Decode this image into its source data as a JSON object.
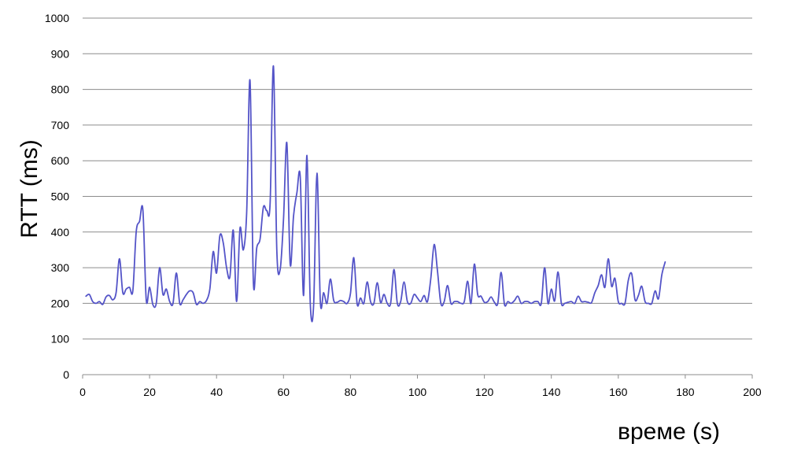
{
  "chart_data": {
    "type": "line",
    "title": "",
    "xlabel": "време (s)",
    "ylabel": "RTT (ms)",
    "xlim": [
      0,
      200
    ],
    "ylim": [
      0,
      1000
    ],
    "x_ticks": [
      0,
      20,
      40,
      60,
      80,
      100,
      120,
      140,
      160,
      180,
      200
    ],
    "y_ticks": [
      0,
      100,
      200,
      300,
      400,
      500,
      600,
      700,
      800,
      900,
      1000
    ],
    "grid": "horizontal",
    "legend": "none",
    "line_color": "#5454c8",
    "series": [
      {
        "x": [
          1,
          2,
          3,
          4,
          5,
          6,
          7,
          8,
          9,
          10,
          11,
          12,
          13,
          14,
          15,
          16,
          17,
          18,
          19,
          20,
          21,
          22,
          23,
          24,
          25,
          26,
          27,
          28,
          29,
          30,
          31,
          32,
          33,
          34,
          35,
          36,
          37,
          38,
          39,
          40,
          41,
          42,
          43,
          44,
          45,
          46,
          47,
          48,
          49,
          50,
          51,
          52,
          53,
          54,
          55,
          56,
          57,
          58,
          59,
          60,
          61,
          62,
          63,
          64,
          65,
          66,
          67,
          68,
          69,
          70,
          71,
          72,
          73,
          74,
          75,
          76,
          77,
          78,
          79,
          80,
          81,
          82,
          83,
          84,
          85,
          86,
          87,
          88,
          89,
          90,
          91,
          92,
          93,
          94,
          95,
          96,
          97,
          98,
          99,
          100,
          101,
          102,
          103,
          104,
          105,
          106,
          107,
          108,
          109,
          110,
          111,
          112,
          113,
          114,
          115,
          116,
          117,
          118,
          119,
          120,
          121,
          122,
          123,
          124,
          125,
          126,
          127,
          128,
          129,
          130,
          131,
          132,
          133,
          134,
          135,
          136,
          137,
          138,
          139,
          140,
          141,
          142,
          143,
          144,
          145,
          146,
          147,
          148,
          149,
          150,
          151,
          152,
          153,
          154,
          155,
          156,
          157,
          158,
          159,
          160,
          161,
          162,
          163,
          164,
          165,
          166,
          167,
          168,
          169,
          170,
          171,
          172,
          173,
          174
        ],
        "values": [
          220,
          225,
          205,
          200,
          205,
          197,
          218,
          222,
          210,
          230,
          325,
          230,
          240,
          245,
          235,
          400,
          430,
          462,
          210,
          245,
          196,
          200,
          300,
          225,
          240,
          205,
          200,
          285,
          200,
          210,
          225,
          235,
          230,
          197,
          205,
          200,
          208,
          240,
          345,
          285,
          390,
          370,
          300,
          275,
          405,
          205,
          410,
          350,
          455,
          825,
          260,
          355,
          380,
          470,
          460,
          480,
          865,
          350,
          295,
          435,
          650,
          310,
          445,
          510,
          555,
          222,
          615,
          200,
          195,
          565,
          205,
          230,
          200,
          268,
          208,
          203,
          208,
          205,
          200,
          228,
          328,
          198,
          215,
          200,
          260,
          205,
          200,
          258,
          202,
          225,
          200,
          200,
          295,
          200,
          205,
          260,
          205,
          200,
          225,
          215,
          205,
          222,
          205,
          270,
          365,
          290,
          200,
          205,
          250,
          200,
          205,
          205,
          200,
          205,
          262,
          200,
          310,
          225,
          220,
          203,
          205,
          218,
          203,
          200,
          287,
          197,
          205,
          200,
          208,
          220,
          200,
          205,
          205,
          200,
          205,
          205,
          200,
          300,
          200,
          240,
          207,
          288,
          200,
          200,
          203,
          205,
          200,
          220,
          205,
          205,
          203,
          202,
          230,
          250,
          280,
          245,
          325,
          248,
          270,
          205,
          200,
          200,
          265,
          283,
          210,
          222,
          248,
          205,
          200,
          200,
          235,
          213,
          280,
          316
        ]
      }
    ]
  }
}
